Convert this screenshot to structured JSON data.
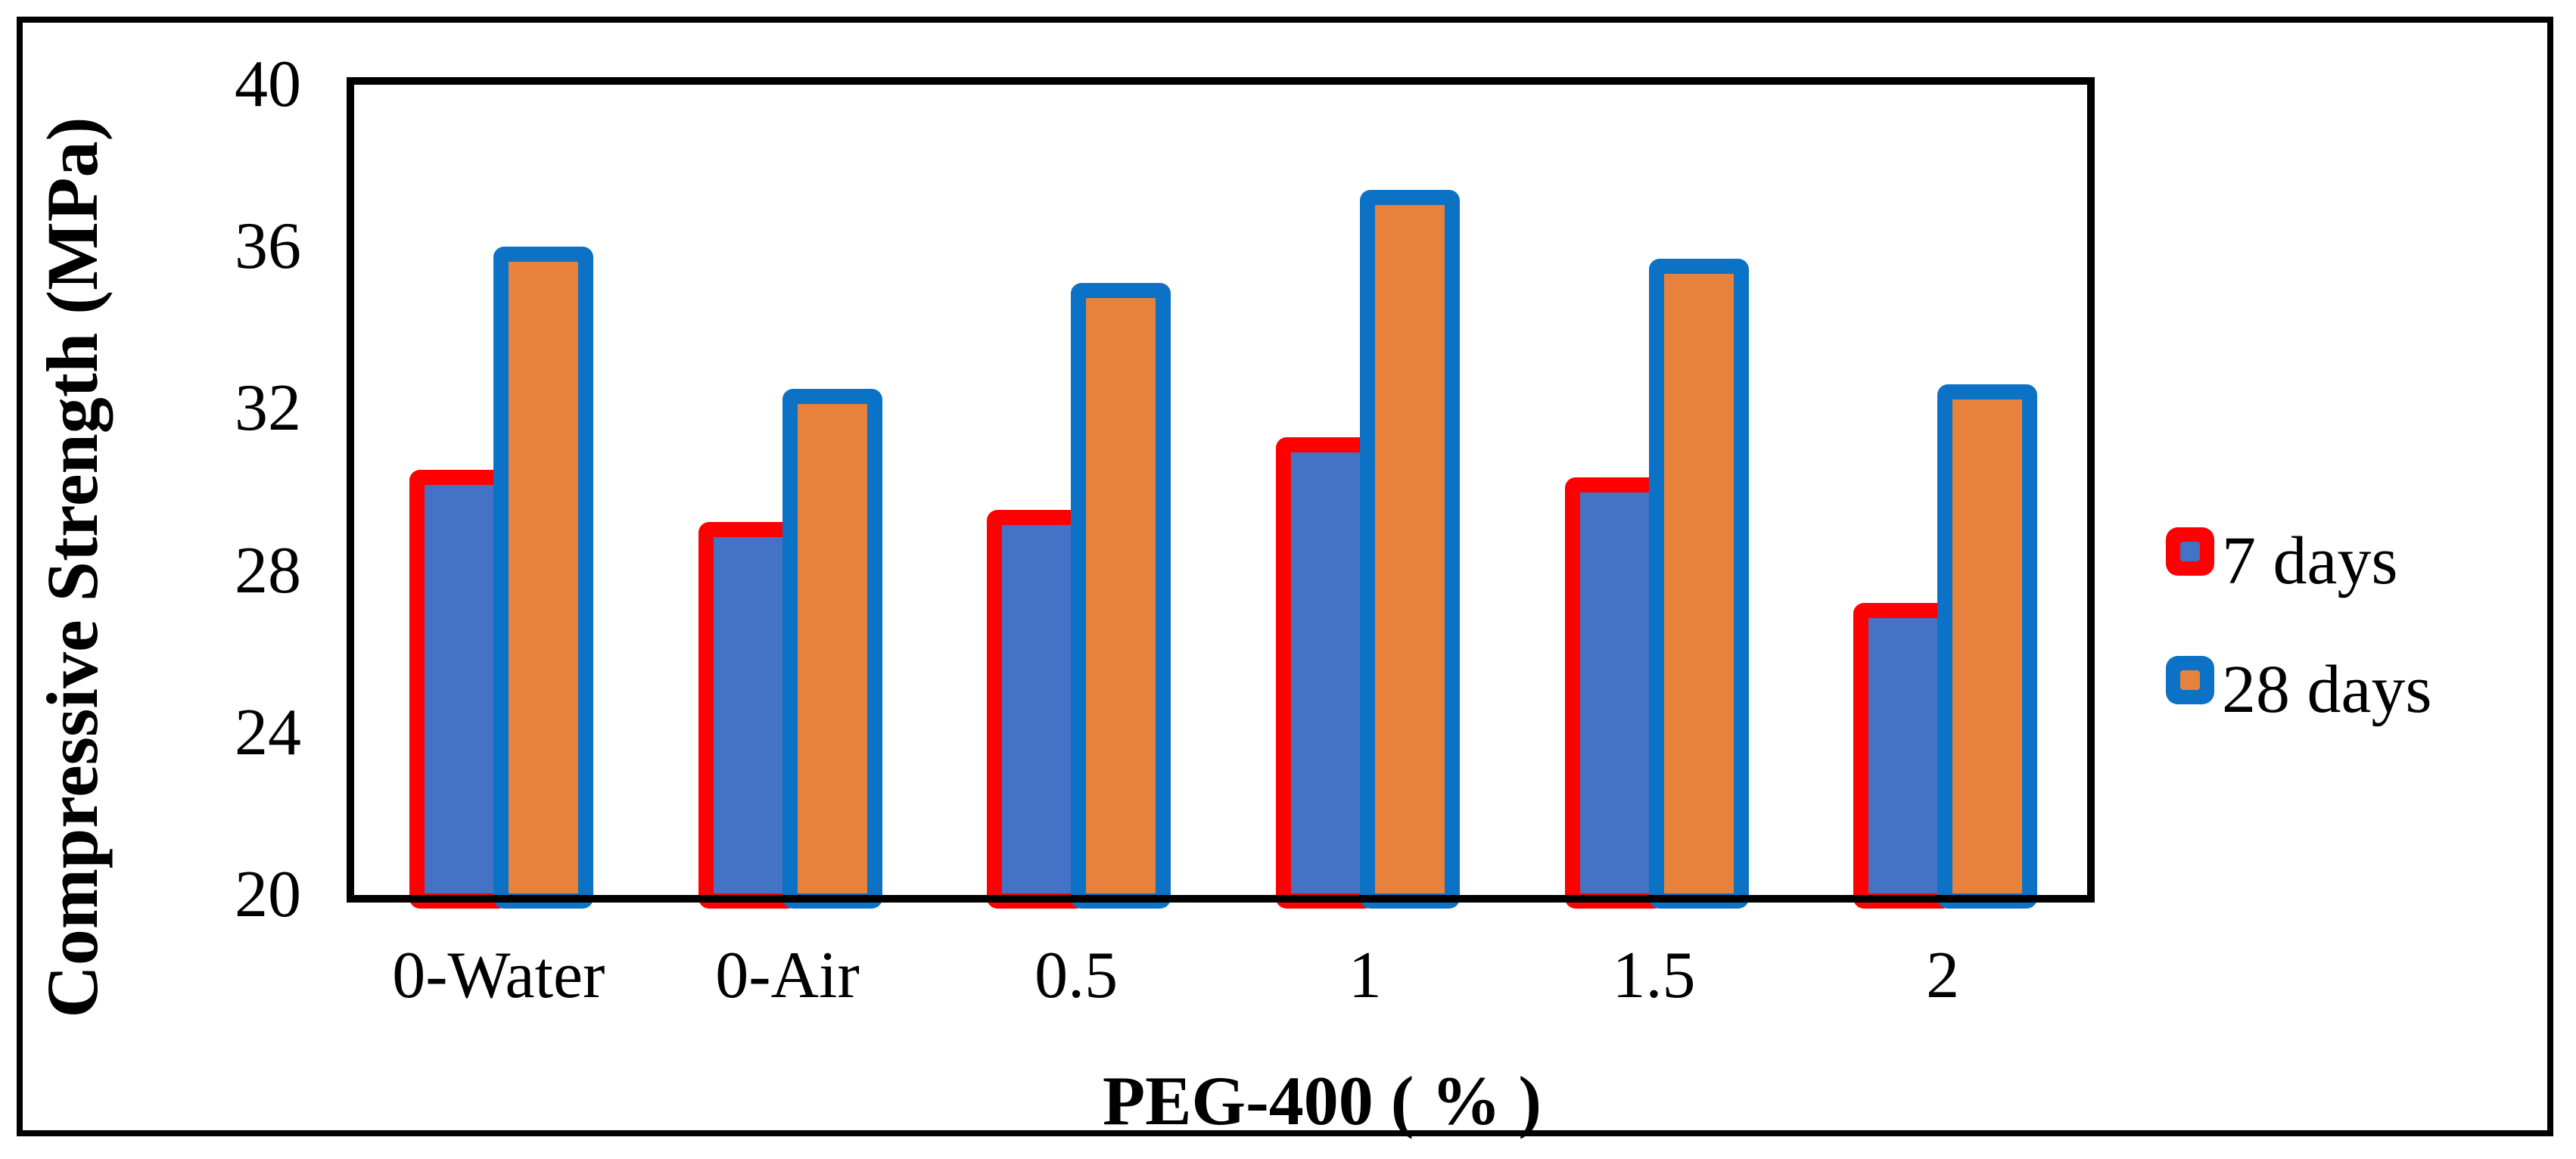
{
  "figure": {
    "y_axis_title": "Compressive Strength (MPa)",
    "x_axis_title": "PEG-400 ( % )"
  },
  "legend": {
    "position": "right",
    "items": [
      {
        "label": "7 days",
        "border_color": "#FF0000",
        "fill_color": "#4472C4"
      },
      {
        "label": "28 days",
        "border_color": "#0B72C5",
        "fill_color": "#E8813B"
      }
    ]
  },
  "chart_data": {
    "type": "bar",
    "title": "",
    "categories": [
      "0-Water",
      "0-Air",
      "0.5",
      "1",
      "1.5",
      "2"
    ],
    "series": [
      {
        "name": "7 days",
        "values": [
          30.5,
          29.2,
          29.5,
          31.3,
          30.3,
          27.2
        ],
        "fill_color": "#4472C4",
        "border_color": "#FF0000"
      },
      {
        "name": "28 days",
        "values": [
          36.0,
          32.5,
          35.1,
          37.4,
          35.7,
          32.6
        ],
        "fill_color": "#E8813B",
        "border_color": "#0B72C5"
      }
    ],
    "xlabel": "PEG-400 ( % )",
    "ylabel": "Compressive Strength (MPa)",
    "ylim": [
      20,
      40
    ],
    "yticks": [
      20,
      24,
      28,
      32,
      36,
      40
    ],
    "grid": false,
    "legend_position": "right",
    "axis_color": "#000000"
  }
}
